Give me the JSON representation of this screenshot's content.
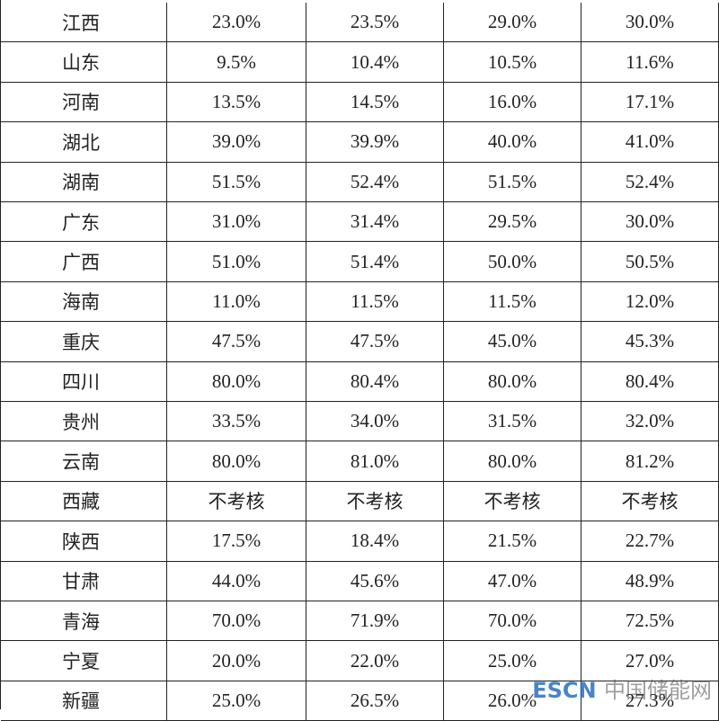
{
  "table": {
    "rows": [
      [
        "江西",
        "23.0%",
        "23.5%",
        "29.0%",
        "30.0%"
      ],
      [
        "山东",
        "9.5%",
        "10.4%",
        "10.5%",
        "11.6%"
      ],
      [
        "河南",
        "13.5%",
        "14.5%",
        "16.0%",
        "17.1%"
      ],
      [
        "湖北",
        "39.0%",
        "39.9%",
        "40.0%",
        "41.0%"
      ],
      [
        "湖南",
        "51.5%",
        "52.4%",
        "51.5%",
        "52.4%"
      ],
      [
        "广东",
        "31.0%",
        "31.4%",
        "29.5%",
        "30.0%"
      ],
      [
        "广西",
        "51.0%",
        "51.4%",
        "50.0%",
        "50.5%"
      ],
      [
        "海南",
        "11.0%",
        "11.5%",
        "11.5%",
        "12.0%"
      ],
      [
        "重庆",
        "47.5%",
        "47.5%",
        "45.0%",
        "45.3%"
      ],
      [
        "四川",
        "80.0%",
        "80.4%",
        "80.0%",
        "80.4%"
      ],
      [
        "贵州",
        "33.5%",
        "34.0%",
        "31.5%",
        "32.0%"
      ],
      [
        "云南",
        "80.0%",
        "81.0%",
        "80.0%",
        "81.2%"
      ],
      [
        "西藏",
        "不考核",
        "不考核",
        "不考核",
        "不考核"
      ],
      [
        "陕西",
        "17.5%",
        "18.4%",
        "21.5%",
        "22.7%"
      ],
      [
        "甘肃",
        "44.0%",
        "45.6%",
        "47.0%",
        "48.9%"
      ],
      [
        "青海",
        "70.0%",
        "71.9%",
        "70.0%",
        "72.5%"
      ],
      [
        "宁夏",
        "20.0%",
        "22.0%",
        "25.0%",
        "27.0%"
      ],
      [
        "新疆",
        "25.0%",
        "26.5%",
        "26.0%",
        "27.3%"
      ]
    ]
  },
  "watermark": {
    "brand": "ESCN",
    "text": "中国储能网"
  }
}
